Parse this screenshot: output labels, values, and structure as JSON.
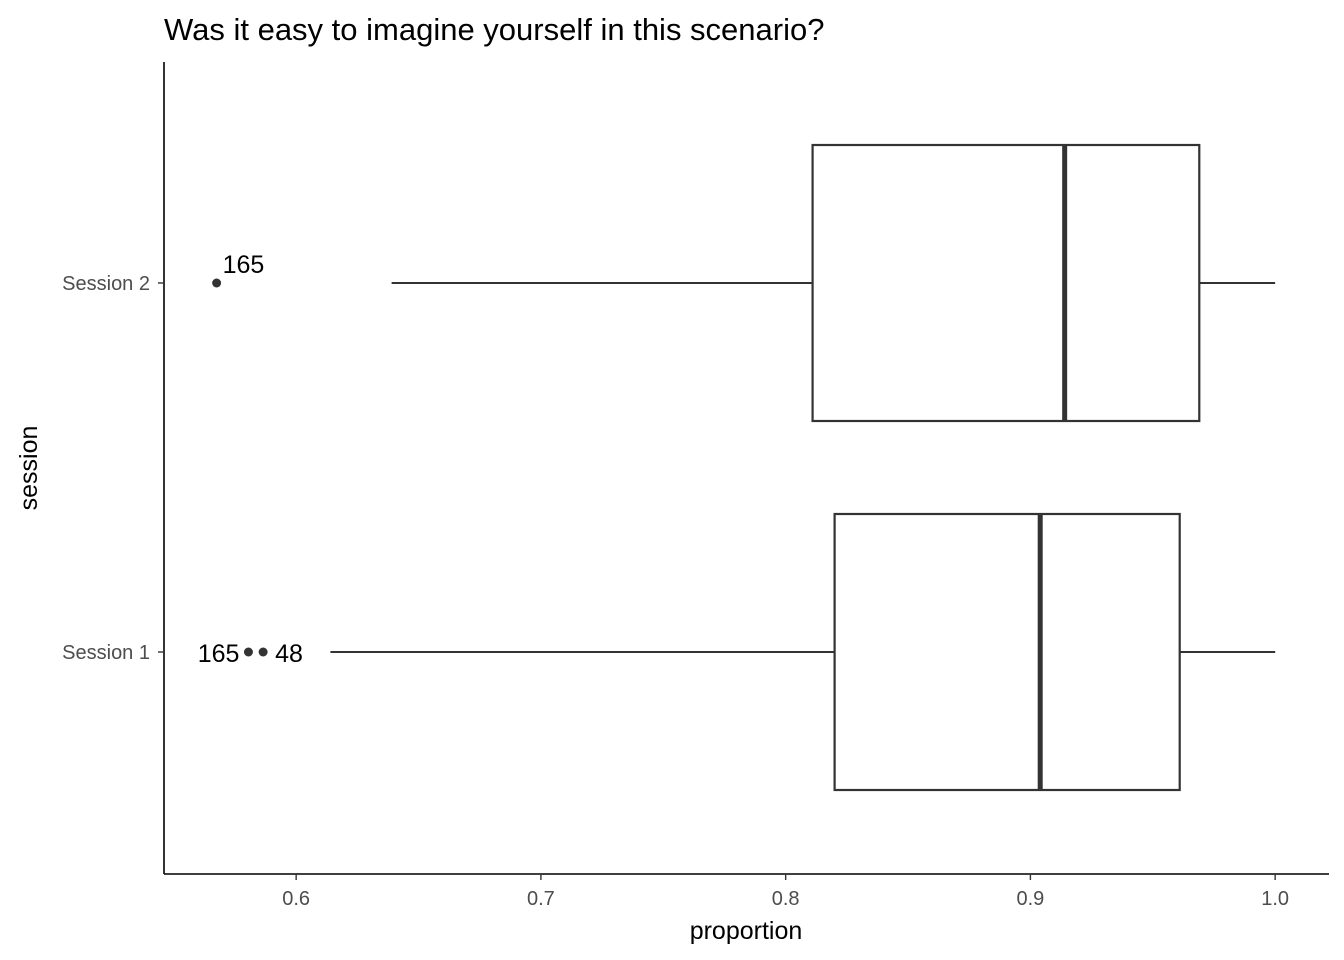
{
  "chart_data": {
    "type": "boxplot",
    "title": "Was it easy to imagine yourself in this scenario?",
    "xlabel": "proportion",
    "ylabel": "session",
    "xlim": [
      0.546,
      1.022
    ],
    "x_ticks": [
      0.6,
      0.7,
      0.8,
      0.9,
      1.0
    ],
    "x_tick_labels": [
      "0.6",
      "0.7",
      "0.8",
      "0.9",
      "1.0"
    ],
    "categories": [
      "Session 1",
      "Session 2"
    ],
    "grid": false,
    "series": [
      {
        "category": "Session 1",
        "whisker_low": 0.614,
        "q1": 0.82,
        "median": 0.904,
        "q3": 0.961,
        "whisker_high": 1.0,
        "outliers": [
          {
            "value": 0.5805,
            "label": "165",
            "label_side": "left"
          },
          {
            "value": 0.5865,
            "label": "48",
            "label_side": "right"
          }
        ]
      },
      {
        "category": "Session 2",
        "whisker_low": 0.639,
        "q1": 0.811,
        "median": 0.914,
        "q3": 0.969,
        "whisker_high": 1.0,
        "outliers": [
          {
            "value": 0.5675,
            "label": "165",
            "label_side": "above-right"
          }
        ]
      }
    ]
  }
}
